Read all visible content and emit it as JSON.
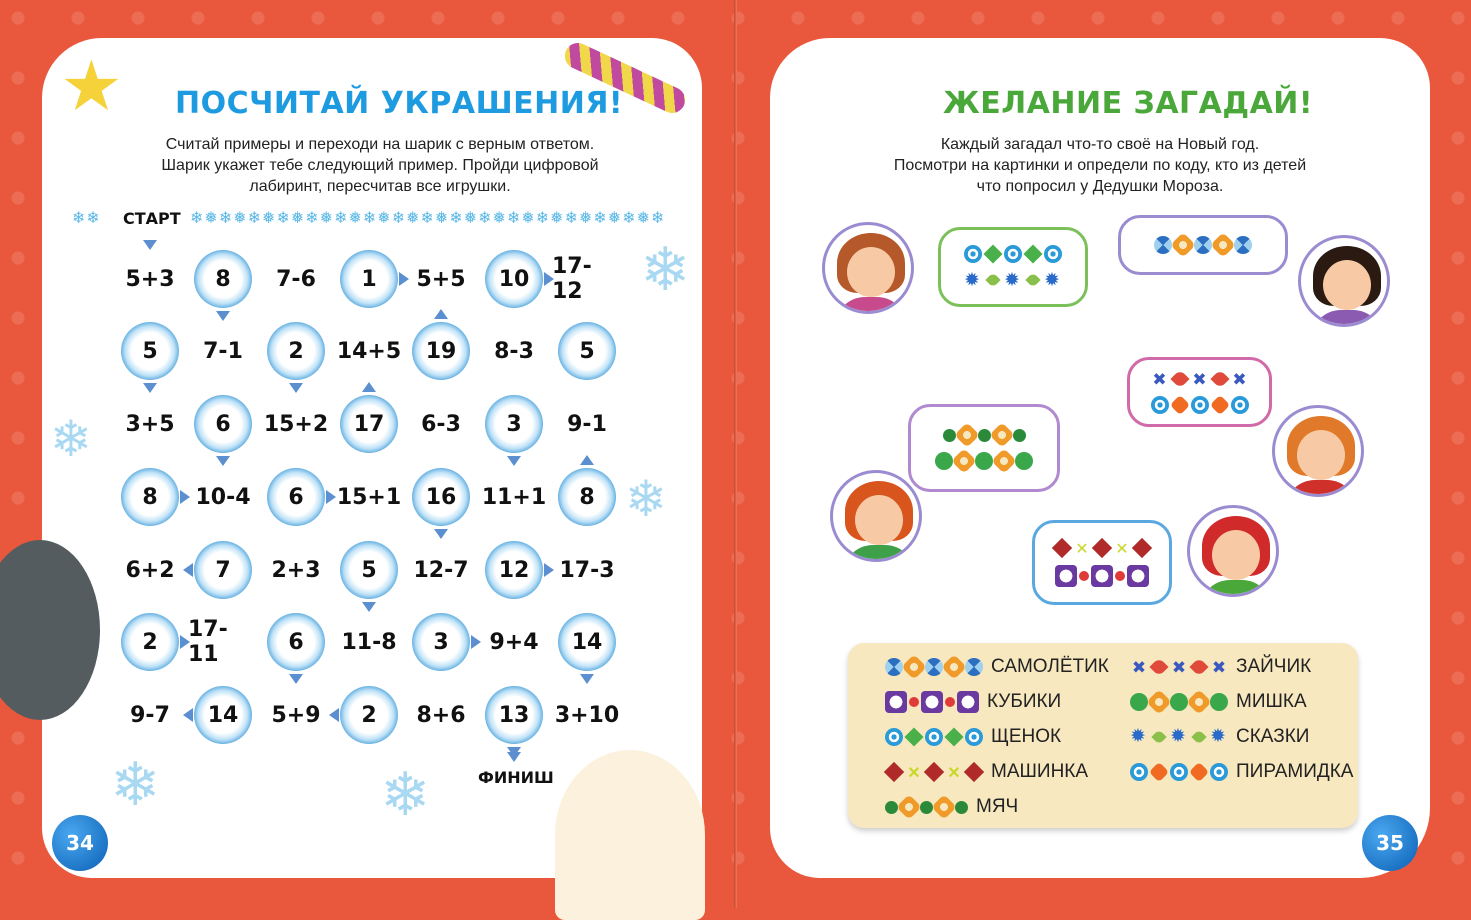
{
  "left_page": {
    "title": "ПОСЧИТАЙ УКРАШЕНИЯ!",
    "title_color": "#1e9be0",
    "instructions": [
      "Считай примеры и переходи на шарик с верным ответом.",
      "Шарик укажет тебе следующий пример. Пройди цифровой",
      "лабиринт, пересчитав все игрушки."
    ],
    "start_label": "СТАРТ",
    "finish_label": "ФИНИШ",
    "page_number": "34",
    "maze": [
      [
        {
          "t": "5+3"
        },
        {
          "t": "8",
          "a": "down"
        },
        {
          "t": "7-6"
        },
        {
          "t": "1",
          "a": "right"
        },
        {
          "t": "5+5"
        },
        {
          "t": "10",
          "a": "right"
        },
        {
          "t": "17-12"
        }
      ],
      [
        {
          "t": "5",
          "a": "down"
        },
        {
          "t": "7-1"
        },
        {
          "t": "2",
          "a": "down"
        },
        {
          "t": "14+5"
        },
        {
          "t": "19",
          "a": "up"
        },
        {
          "t": "8-3"
        },
        {
          "t": "5"
        }
      ],
      [
        {
          "t": "3+5"
        },
        {
          "t": "6",
          "a": "down"
        },
        {
          "t": "15+2"
        },
        {
          "t": "17",
          "a": "up"
        },
        {
          "t": "6-3"
        },
        {
          "t": "3",
          "a": "down"
        },
        {
          "t": "9-1"
        }
      ],
      [
        {
          "t": "8",
          "a": "right"
        },
        {
          "t": "10-4"
        },
        {
          "t": "6",
          "a": "right"
        },
        {
          "t": "15+1"
        },
        {
          "t": "16",
          "a": "down"
        },
        {
          "t": "11+1"
        },
        {
          "t": "8",
          "a": "up"
        }
      ],
      [
        {
          "t": "6+2"
        },
        {
          "t": "7",
          "a": "left"
        },
        {
          "t": "2+3"
        },
        {
          "t": "5",
          "a": "down"
        },
        {
          "t": "12-7"
        },
        {
          "t": "12",
          "a": "right"
        },
        {
          "t": "17-3"
        }
      ],
      [
        {
          "t": "2",
          "a": "right"
        },
        {
          "t": "17-11"
        },
        {
          "t": "6",
          "a": "down"
        },
        {
          "t": "11-8"
        },
        {
          "t": "3",
          "a": "right"
        },
        {
          "t": "9+4"
        },
        {
          "t": "14",
          "a": "down"
        }
      ],
      [
        {
          "t": "9-7"
        },
        {
          "t": "14",
          "a": "left"
        },
        {
          "t": "5+9"
        },
        {
          "t": "2",
          "a": "left"
        },
        {
          "t": "8+6"
        },
        {
          "t": "13",
          "a": "down"
        },
        {
          "t": "3+10"
        }
      ]
    ]
  },
  "right_page": {
    "title": "ЖЕЛАНИЕ ЗАГАДАЙ!",
    "title_color": "#4aa83a",
    "instructions": [
      "Каждый загадал что-то своё на Новый год.",
      "Посмотри на картинки и определи по коду, кто из детей",
      "что попросил у Дедушки Мороза."
    ],
    "page_number": "35",
    "kids": [
      {
        "name": "girl-brown-hair",
        "hair": "#b5582a",
        "shirt": "#c64a8c",
        "bubble_color": "#7cc05a",
        "codes": [
          [
            "circle-blue",
            "diamond-green",
            "circle-blue",
            "diamond-green",
            "circle-blue"
          ],
          [
            "star-blue",
            "eye-green",
            "star-blue",
            "eye-green",
            "star-blue"
          ]
        ]
      },
      {
        "name": "boy-dark-hair",
        "hair": "#2a1a12",
        "shirt": "#8a5bb0",
        "bubble_color": "#9b8bd0",
        "codes": [
          [
            "xcircle-blue",
            "gear-orange",
            "xcircle-blue",
            "gear-orange",
            "xcircle-blue"
          ]
        ]
      },
      {
        "name": "girl-red-hair",
        "hair": "#e07a2a",
        "shirt": "#d0302a",
        "bubble_color": "#d06aa8",
        "codes": [
          [
            "x-blue",
            "eye-red",
            "x-blue",
            "eye-red",
            "x-blue"
          ],
          [
            "circle-blue",
            "gear-orangefill",
            "circle-blue",
            "gear-orangefill",
            "circle-blue"
          ]
        ]
      },
      {
        "name": "boy-red-hair",
        "hair": "#d8561e",
        "shirt": "#3fa04a",
        "bubble_color": "#b08ad0",
        "codes": [
          [
            "dot-green",
            "gear-orange",
            "dot-green",
            "gear-orange",
            "dot-green"
          ],
          [
            "circle-green",
            "gear-orange",
            "circle-green",
            "gear-orange",
            "circle-green"
          ]
        ]
      },
      {
        "name": "boy-cap",
        "hair": "#d02a2a",
        "shirt": "#4aa83a",
        "bubble_color": "#5aa8e0",
        "codes": [
          [
            "diamond-red",
            "x-yellow",
            "diamond-red",
            "x-yellow",
            "diamond-red"
          ],
          [
            "square-purple",
            "dot-red",
            "square-purple",
            "dot-red",
            "square-purple"
          ]
        ]
      }
    ],
    "legend": [
      {
        "label": "САМОЛЁТИК",
        "code": [
          "xcircle-blue",
          "gear-orange",
          "xcircle-blue",
          "gear-orange",
          "xcircle-blue"
        ]
      },
      {
        "label": "КУБИКИ",
        "code": [
          "square-purple",
          "dot-red",
          "square-purple",
          "dot-red",
          "square-purple"
        ]
      },
      {
        "label": "ЩЕНОК",
        "code": [
          "circle-blue",
          "diamond-green",
          "circle-blue",
          "diamond-green",
          "circle-blue"
        ]
      },
      {
        "label": "МАШИНКА",
        "code": [
          "diamond-red",
          "x-yellow",
          "diamond-red",
          "x-yellow",
          "diamond-red"
        ]
      },
      {
        "label": "МЯЧ",
        "code": [
          "dot-green",
          "gear-orange",
          "dot-green",
          "gear-orange",
          "dot-green"
        ]
      },
      {
        "label": "ЗАЙЧИК",
        "code": [
          "x-blue",
          "eye-red",
          "x-blue",
          "eye-red",
          "x-blue"
        ]
      },
      {
        "label": "МИШКА",
        "code": [
          "circle-green",
          "gear-orange",
          "circle-green",
          "gear-orange",
          "circle-green"
        ]
      },
      {
        "label": "СКАЗКИ",
        "code": [
          "star-blue",
          "eye-green",
          "star-blue",
          "eye-green",
          "star-blue"
        ]
      },
      {
        "label": "ПИРАМИДКА",
        "code": [
          "circle-blue",
          "gear-orangefill",
          "circle-blue",
          "gear-orangefill",
          "circle-blue"
        ]
      }
    ]
  }
}
